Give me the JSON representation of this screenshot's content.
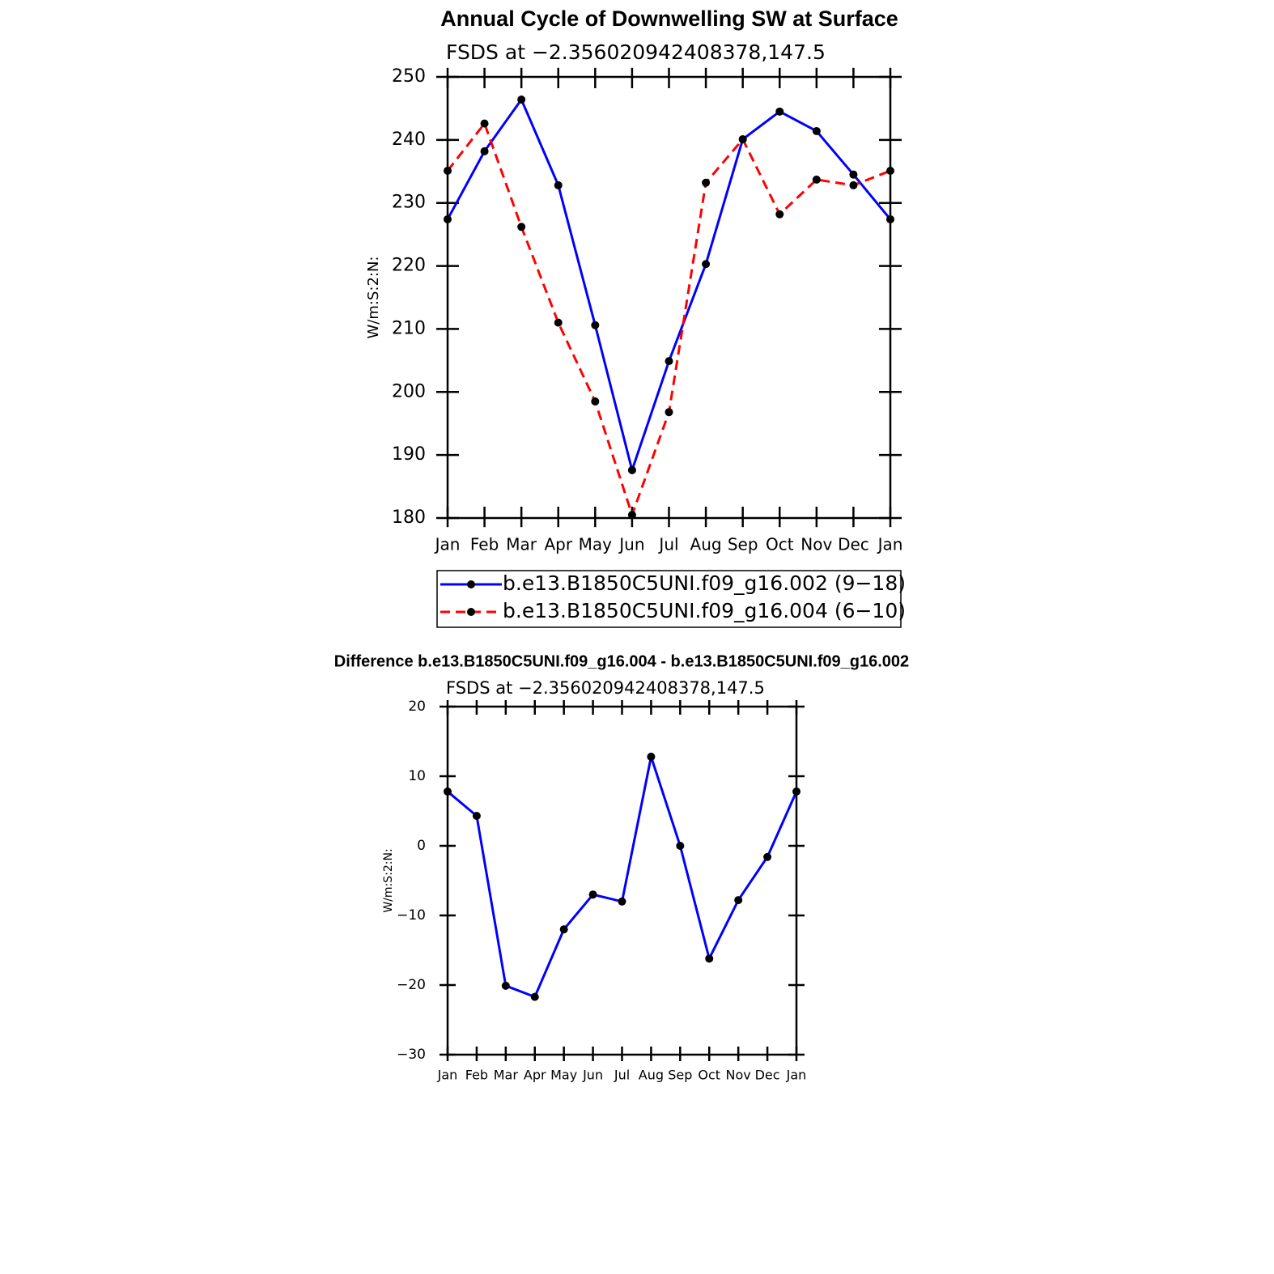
{
  "chart_data": [
    {
      "type": "line",
      "title": "Annual Cycle of Downwelling SW at Surface",
      "subtitle": "FSDS at −2.356020942408378,147.5",
      "ylabel": "W/m:S:2:N:",
      "categories": [
        "Jan",
        "Feb",
        "Mar",
        "Apr",
        "May",
        "Jun",
        "Jul",
        "Aug",
        "Sep",
        "Oct",
        "Nov",
        "Dec",
        "Jan"
      ],
      "series": [
        {
          "name": "b.e13.B1850C5UNI.f09_g16.002 (9−18)",
          "color": "#0000ff",
          "line_style": "solid",
          "values": [
            227.4,
            238.2,
            246.4,
            232.8,
            210.6,
            187.6,
            204.9,
            220.3,
            240.1,
            244.5,
            241.4,
            234.5,
            227.4
          ]
        },
        {
          "name": "b.e13.B1850C5UNI.f09_g16.004 (6−10)",
          "color": "#ff0000",
          "line_style": "dashed",
          "values": [
            235.1,
            242.6,
            226.2,
            211.0,
            198.5,
            180.5,
            196.8,
            233.2,
            240.1,
            228.2,
            233.7,
            232.8,
            235.1
          ]
        }
      ],
      "ylim": [
        180,
        250
      ],
      "yticks": [
        180,
        190,
        200,
        210,
        220,
        230,
        240,
        250
      ],
      "legend": "bottom"
    },
    {
      "type": "line",
      "title": "Difference b.e13.B1850C5UNI.f09_g16.004 - b.e13.B1850C5UNI.f09_g16.002",
      "subtitle": "FSDS at −2.356020942408378,147.5",
      "ylabel": "W/m:S:2:N:",
      "categories": [
        "Jan",
        "Feb",
        "Mar",
        "Apr",
        "May",
        "Jun",
        "Jul",
        "Aug",
        "Sep",
        "Oct",
        "Nov",
        "Dec",
        "Jan"
      ],
      "series": [
        {
          "color": "#0000ff",
          "line_style": "solid",
          "values": [
            7.8,
            4.3,
            -20.1,
            -21.7,
            -12.0,
            -7.0,
            -8.0,
            12.8,
            0,
            -16.2,
            -7.8,
            -1.6,
            7.8
          ]
        }
      ],
      "ylim": [
        -30,
        20
      ],
      "yticks": [
        {
          "value": -30,
          "label": "−30"
        },
        {
          "value": -20,
          "label": "−20"
        },
        {
          "value": -10,
          "label": "−10"
        },
        0,
        10,
        20
      ]
    }
  ]
}
